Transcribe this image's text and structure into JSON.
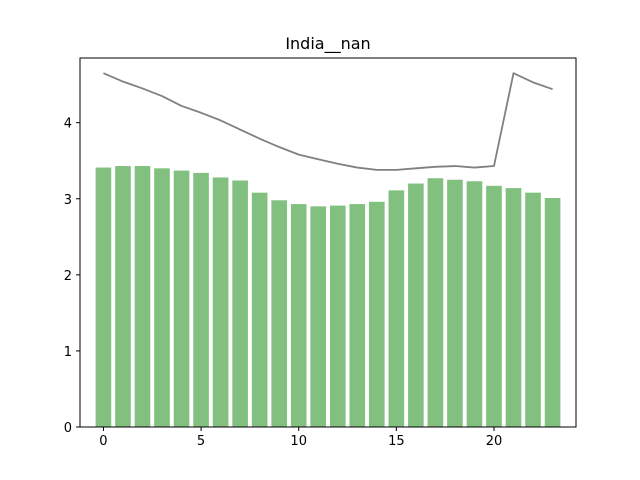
{
  "chart_data": {
    "type": "bar",
    "title": "India__nan",
    "xlabel": "",
    "ylabel": "",
    "x": [
      0,
      1,
      2,
      3,
      4,
      5,
      6,
      7,
      8,
      9,
      10,
      11,
      12,
      13,
      14,
      15,
      16,
      17,
      18,
      19,
      20,
      21,
      22,
      23
    ],
    "series": [
      {
        "type": "bar",
        "color": "#81c07f",
        "values": [
          3.41,
          3.43,
          3.43,
          3.4,
          3.37,
          3.34,
          3.28,
          3.24,
          3.08,
          2.98,
          2.93,
          2.9,
          2.91,
          2.93,
          2.96,
          3.11,
          3.2,
          3.27,
          3.25,
          3.23,
          3.17,
          3.14,
          3.08,
          3.01
        ]
      },
      {
        "type": "line",
        "color": "#808080",
        "values": [
          4.65,
          4.54,
          4.45,
          4.35,
          4.22,
          4.13,
          4.03,
          3.91,
          3.79,
          3.68,
          3.58,
          3.52,
          3.46,
          3.41,
          3.38,
          3.38,
          3.4,
          3.42,
          3.43,
          3.41,
          3.43,
          4.65,
          4.53,
          4.44
        ]
      }
    ],
    "xlim": [
      -1.2,
      24.2
    ],
    "ylim": [
      0,
      4.85
    ],
    "xticks": [
      "0",
      "5",
      "10",
      "15",
      "20"
    ],
    "yticks": [
      "0",
      "1",
      "2",
      "3",
      "4"
    ],
    "grid": false,
    "legend": "none"
  }
}
